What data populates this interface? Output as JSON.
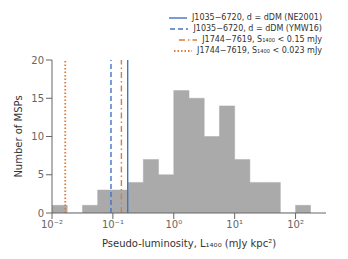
{
  "chart_data": {
    "type": "histogram",
    "xlabel": "Pseudo-luminosity, L₁₄₀₀ (mJy kpc²)",
    "ylabel": "Number of MSPs",
    "log": "x",
    "xlim": [
      0.01,
      316.22776601683796
    ],
    "xticks": [
      {
        "value": 0.01,
        "label": "10⁻²"
      },
      {
        "value": 0.1,
        "label": "10⁻¹"
      },
      {
        "value": 1,
        "label": "10⁰"
      },
      {
        "value": 10,
        "label": "10¹"
      },
      {
        "value": 100,
        "label": "10²"
      }
    ],
    "ylim": [
      0,
      20
    ],
    "yticks": [
      0,
      5,
      10,
      15,
      20
    ],
    "color": "#aaaaaa",
    "bins": [
      0.01,
      0.01778279410038923,
      0.03162277660168379,
      0.05623413251903491,
      0.1,
      0.1778279410038923,
      0.31622776601683794,
      0.5623413251903491,
      1,
      1.7782794100389228,
      3.1622776601683795,
      5.623413251903491,
      10,
      17.78279410038923,
      31.622776601683793,
      56.23413251903491,
      100,
      177.82794100389228
    ],
    "values": [
      1,
      0,
      1,
      3,
      3,
      4,
      7,
      5,
      16,
      15,
      10,
      14,
      7,
      4,
      4,
      0,
      1
    ],
    "series": [
      {
        "name": "J1035−6720, d = dDM (NE2001)",
        "type": "vline",
        "x": 0.175,
        "color": "#4472c4",
        "line_style": "solid"
      },
      {
        "name": "J1035−6720, d = dDM (YMW16)",
        "type": "vline",
        "x": 0.093,
        "color": "#4472c4",
        "line_style": "dashed"
      },
      {
        "name": "J1744−7619, S₁₄₀₀ < 0.15 mJy",
        "type": "vline",
        "x": 0.138,
        "color": "#e07b39",
        "line_style": "dashdot"
      },
      {
        "name": "J1744−7619, S₁₄₀₀ < 0.023 mJy",
        "type": "vline",
        "x": 0.0165,
        "color": "#e07b39",
        "line_style": "dotted"
      }
    ],
    "legend": "upper right"
  }
}
